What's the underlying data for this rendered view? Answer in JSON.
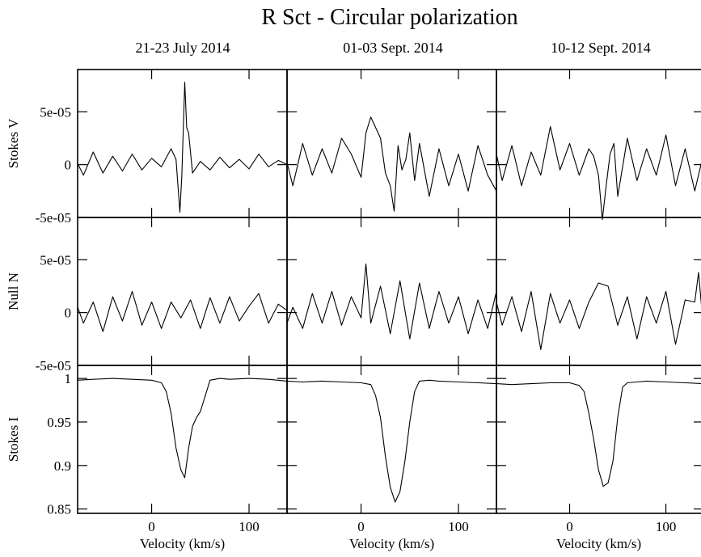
{
  "figure": {
    "title": "R Sct - Circular polarization",
    "columns": [
      "21-23 July 2014",
      "01-03 Sept. 2014",
      "10-12 Sept. 2014"
    ],
    "rows": [
      {
        "label": "Stokes V",
        "yticklabels": [
          "5e-05",
          "0",
          "-5e-05"
        ]
      },
      {
        "label": "Null N",
        "yticklabels": [
          "5e-05",
          "0",
          "-5e-05"
        ]
      },
      {
        "label": "Stokes I",
        "yticklabels": [
          "1",
          "0.95",
          "0.9",
          "0.85"
        ]
      }
    ],
    "xticklabels": [
      "0",
      "100"
    ],
    "xlabel": "Velocity (km/s)"
  },
  "chart_data": {
    "type": "line",
    "title": "R Sct - Circular polarization",
    "xlabel": "Velocity (km/s)",
    "xlim": [
      -76,
      139
    ],
    "grid": false,
    "columns": [
      "21-23 July 2014",
      "01-03 Sept. 2014",
      "10-12 Sept. 2014"
    ],
    "rows": [
      {
        "label": "Stokes V",
        "ylim": [
          -5e-05,
          9e-05
        ],
        "yticks": [
          5e-05,
          0,
          -5e-05
        ]
      },
      {
        "label": "Null N",
        "ylim": [
          -5e-05,
          9e-05
        ],
        "yticks": [
          5e-05,
          0,
          -5e-05
        ]
      },
      {
        "label": "Stokes I",
        "ylim": [
          0.845,
          1.015
        ],
        "yticks": [
          1,
          0.95,
          0.9,
          0.85
        ]
      }
    ],
    "xticks": [
      0,
      100
    ],
    "panels": [
      {
        "row": 0,
        "col": 0,
        "x": [
          -76,
          -70,
          -60,
          -50,
          -40,
          -30,
          -20,
          -10,
          0,
          10,
          20,
          25,
          29,
          31,
          34,
          36,
          38,
          42,
          50,
          60,
          70,
          80,
          90,
          100,
          110,
          120,
          130,
          139
        ],
        "y": [
          1e-06,
          -1e-05,
          1.2e-05,
          -8e-06,
          8e-06,
          -6e-06,
          1e-05,
          -5e-06,
          6e-06,
          -2e-06,
          1.5e-05,
          5e-06,
          -4.5e-05,
          -1e-05,
          7.8e-05,
          3.5e-05,
          3e-05,
          -8e-06,
          3e-06,
          -5e-06,
          7e-06,
          -3e-06,
          5e-06,
          -4e-06,
          1e-05,
          -2e-06,
          4e-06,
          0.0
        ]
      },
      {
        "row": 0,
        "col": 1,
        "x": [
          -76,
          -70,
          -60,
          -50,
          -40,
          -30,
          -20,
          -10,
          0,
          5,
          10,
          15,
          20,
          25,
          30,
          34,
          38,
          42,
          46,
          50,
          55,
          60,
          70,
          80,
          90,
          100,
          110,
          120,
          130,
          139
        ],
        "y": [
          2e-06,
          -2e-05,
          2e-05,
          -1e-05,
          1.5e-05,
          -8e-06,
          2.5e-05,
          1e-05,
          -1.2e-05,
          3e-05,
          4.5e-05,
          3.5e-05,
          2.5e-05,
          -8e-06,
          -2e-05,
          -4.4e-05,
          1.8e-05,
          -5e-06,
          5e-06,
          3e-05,
          -1.5e-05,
          2e-05,
          -3e-05,
          1.5e-05,
          -2e-05,
          1e-05,
          -2.5e-05,
          1.8e-05,
          -1e-05,
          -2.5e-05
        ]
      },
      {
        "row": 0,
        "col": 2,
        "x": [
          -76,
          -70,
          -60,
          -50,
          -40,
          -30,
          -20,
          -10,
          0,
          10,
          20,
          25,
          30,
          34,
          38,
          42,
          46,
          50,
          60,
          70,
          80,
          90,
          100,
          110,
          120,
          130,
          139
        ],
        "y": [
          1e-05,
          -1.5e-05,
          1.8e-05,
          -2e-05,
          1.2e-05,
          -1e-05,
          3.6e-05,
          -5e-06,
          2e-05,
          -1e-05,
          1.5e-05,
          8e-06,
          -1e-05,
          -5.2e-05,
          -2e-05,
          1e-05,
          2e-05,
          -3e-05,
          2.5e-05,
          -1.5e-05,
          1.5e-05,
          -1e-05,
          2.8e-05,
          -2e-05,
          1.5e-05,
          -2.5e-05,
          1e-05
        ]
      },
      {
        "row": 1,
        "col": 0,
        "x": [
          -76,
          -70,
          -60,
          -50,
          -40,
          -30,
          -20,
          -10,
          0,
          10,
          20,
          30,
          40,
          50,
          60,
          70,
          80,
          90,
          100,
          110,
          120,
          130,
          139
        ],
        "y": [
          5e-06,
          -1e-05,
          1e-05,
          -1.8e-05,
          1.5e-05,
          -8e-06,
          2e-05,
          -1.2e-05,
          1e-05,
          -1.5e-05,
          1e-05,
          -5e-06,
          1.2e-05,
          -1.5e-05,
          1.4e-05,
          -1e-05,
          1.5e-05,
          -8e-06,
          6e-06,
          1.8e-05,
          -1e-05,
          8e-06,
          2e-06
        ]
      },
      {
        "row": 1,
        "col": 1,
        "x": [
          -76,
          -70,
          -60,
          -50,
          -40,
          -30,
          -20,
          -10,
          0,
          5,
          10,
          20,
          30,
          40,
          50,
          60,
          70,
          80,
          90,
          100,
          110,
          120,
          130,
          139
        ],
        "y": [
          -1e-05,
          5e-06,
          -1.5e-05,
          1.8e-05,
          -1e-05,
          2e-05,
          -1.2e-05,
          1.5e-05,
          -5e-06,
          4.6e-05,
          -1e-05,
          2.5e-05,
          -2e-05,
          3e-05,
          -2.5e-05,
          2.8e-05,
          -1.5e-05,
          2e-05,
          -1e-05,
          1.5e-05,
          -2e-05,
          1.2e-05,
          -1.5e-05,
          2e-05
        ]
      },
      {
        "row": 1,
        "col": 2,
        "x": [
          -76,
          -70,
          -60,
          -50,
          -40,
          -30,
          -20,
          -10,
          0,
          10,
          20,
          30,
          40,
          50,
          60,
          70,
          80,
          90,
          100,
          110,
          120,
          130,
          134,
          139
        ],
        "y": [
          1e-05,
          -1.2e-05,
          1.5e-05,
          -1.8e-05,
          2e-05,
          -3.5e-05,
          1.8e-05,
          -1e-05,
          1.2e-05,
          -1.5e-05,
          1e-05,
          2.8e-05,
          2.5e-05,
          -1.2e-05,
          1.5e-05,
          -2.5e-05,
          1.5e-05,
          -1e-05,
          2e-05,
          -3e-05,
          1.2e-05,
          1e-05,
          3.8e-05,
          -1.5e-05
        ]
      },
      {
        "row": 2,
        "col": 0,
        "x": [
          -76,
          -60,
          -40,
          -20,
          0,
          10,
          15,
          20,
          25,
          30,
          34,
          38,
          42,
          46,
          50,
          55,
          60,
          70,
          80,
          100,
          120,
          139
        ],
        "y": [
          0.998,
          0.999,
          1.0,
          0.999,
          0.998,
          0.995,
          0.985,
          0.96,
          0.92,
          0.895,
          0.886,
          0.92,
          0.945,
          0.955,
          0.962,
          0.98,
          0.998,
          1.0,
          0.999,
          1.0,
          0.999,
          0.997
        ]
      },
      {
        "row": 2,
        "col": 1,
        "x": [
          -76,
          -60,
          -40,
          -20,
          0,
          10,
          15,
          20,
          25,
          30,
          35,
          40,
          45,
          50,
          55,
          60,
          70,
          80,
          100,
          120,
          139
        ],
        "y": [
          0.997,
          0.996,
          0.997,
          0.996,
          0.995,
          0.993,
          0.98,
          0.955,
          0.91,
          0.875,
          0.858,
          0.87,
          0.905,
          0.95,
          0.985,
          0.997,
          0.998,
          0.997,
          0.996,
          0.995,
          0.994
        ]
      },
      {
        "row": 2,
        "col": 2,
        "x": [
          -76,
          -60,
          -40,
          -20,
          0,
          10,
          15,
          20,
          25,
          30,
          35,
          40,
          45,
          50,
          55,
          60,
          70,
          80,
          100,
          120,
          139
        ],
        "y": [
          0.994,
          0.993,
          0.994,
          0.995,
          0.995,
          0.992,
          0.985,
          0.96,
          0.93,
          0.895,
          0.876,
          0.88,
          0.905,
          0.955,
          0.99,
          0.995,
          0.996,
          0.997,
          0.996,
          0.995,
          0.994
        ]
      }
    ]
  }
}
